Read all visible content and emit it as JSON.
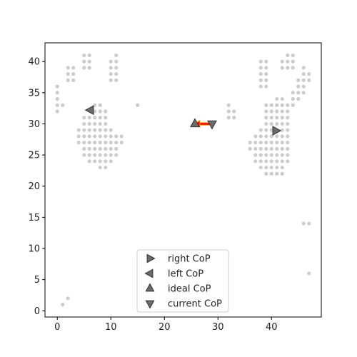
{
  "chart_data": {
    "type": "scatter",
    "title": "",
    "xlabel": "",
    "ylabel": "",
    "xlim": [
      -2.3,
      49.3
    ],
    "ylim": [
      -1,
      43
    ],
    "xticks": [
      "0",
      "10",
      "20",
      "30",
      "40"
    ],
    "yticks": [
      "0",
      "5",
      "10",
      "15",
      "20",
      "25",
      "30",
      "35",
      "40"
    ],
    "grid": false,
    "legend_position": "bottom-center",
    "sensor_color": "#cccccc",
    "marker_color": "#6b6b6b",
    "arrow_color": "#ff0000",
    "arrow_border_color": "#ffaa00",
    "sensor_points": [
      [
        5,
        41
      ],
      [
        6,
        41
      ],
      [
        5,
        40
      ],
      [
        6,
        40
      ],
      [
        5,
        39
      ],
      [
        6,
        39
      ],
      [
        11,
        41
      ],
      [
        10,
        40
      ],
      [
        11,
        40
      ],
      [
        10,
        39
      ],
      [
        11,
        39
      ],
      [
        10,
        38
      ],
      [
        11,
        38
      ],
      [
        10,
        37
      ],
      [
        11,
        37
      ],
      [
        2,
        39
      ],
      [
        3,
        39
      ],
      [
        2,
        38
      ],
      [
        3,
        38
      ],
      [
        2,
        37
      ],
      [
        3,
        37
      ],
      [
        0,
        36
      ],
      [
        0,
        35
      ],
      [
        0,
        34
      ],
      [
        0,
        33
      ],
      [
        1,
        33
      ],
      [
        0,
        32
      ],
      [
        15,
        33
      ],
      [
        7,
        33
      ],
      [
        8,
        33
      ],
      [
        7,
        32
      ],
      [
        8,
        32
      ],
      [
        9,
        32
      ],
      [
        5,
        31
      ],
      [
        6,
        31
      ],
      [
        7,
        31
      ],
      [
        8,
        31
      ],
      [
        9,
        31
      ],
      [
        5,
        30
      ],
      [
        6,
        30
      ],
      [
        7,
        30
      ],
      [
        8,
        30
      ],
      [
        9,
        30
      ],
      [
        4,
        29
      ],
      [
        5,
        29
      ],
      [
        6,
        29
      ],
      [
        7,
        29
      ],
      [
        8,
        29
      ],
      [
        9,
        29
      ],
      [
        10,
        29
      ],
      [
        4,
        28
      ],
      [
        5,
        28
      ],
      [
        6,
        28
      ],
      [
        7,
        28
      ],
      [
        8,
        28
      ],
      [
        9,
        28
      ],
      [
        10,
        28
      ],
      [
        11,
        28
      ],
      [
        12,
        28
      ],
      [
        4,
        27
      ],
      [
        5,
        27
      ],
      [
        6,
        27
      ],
      [
        7,
        27
      ],
      [
        8,
        27
      ],
      [
        9,
        27
      ],
      [
        10,
        27
      ],
      [
        11,
        27
      ],
      [
        12,
        27
      ],
      [
        5,
        26
      ],
      [
        6,
        26
      ],
      [
        7,
        26
      ],
      [
        8,
        26
      ],
      [
        9,
        26
      ],
      [
        10,
        26
      ],
      [
        11,
        26
      ],
      [
        5,
        25
      ],
      [
        6,
        25
      ],
      [
        7,
        25
      ],
      [
        8,
        25
      ],
      [
        9,
        25
      ],
      [
        10,
        25
      ],
      [
        11,
        25
      ],
      [
        6,
        24
      ],
      [
        7,
        24
      ],
      [
        8,
        24
      ],
      [
        9,
        24
      ],
      [
        10,
        24
      ],
      [
        8,
        23
      ],
      [
        9,
        23
      ],
      [
        43,
        41
      ],
      [
        44,
        41
      ],
      [
        42,
        40
      ],
      [
        43,
        40
      ],
      [
        44,
        40
      ],
      [
        42,
        39
      ],
      [
        43,
        39
      ],
      [
        44,
        39
      ],
      [
        38,
        40
      ],
      [
        39,
        40
      ],
      [
        38,
        39
      ],
      [
        39,
        39
      ],
      [
        38,
        38
      ],
      [
        39,
        38
      ],
      [
        38,
        37
      ],
      [
        39,
        37
      ],
      [
        38,
        36
      ],
      [
        39,
        36
      ],
      [
        46,
        39
      ],
      [
        46,
        38
      ],
      [
        47,
        38
      ],
      [
        45,
        37
      ],
      [
        46,
        37
      ],
      [
        47,
        37
      ],
      [
        45,
        36
      ],
      [
        46,
        36
      ],
      [
        44,
        35
      ],
      [
        45,
        35
      ],
      [
        46,
        35
      ],
      [
        41,
        34
      ],
      [
        42,
        34
      ],
      [
        44,
        34
      ],
      [
        45,
        34
      ],
      [
        39,
        33
      ],
      [
        40,
        33
      ],
      [
        41,
        33
      ],
      [
        42,
        33
      ],
      [
        43,
        33
      ],
      [
        44,
        33
      ],
      [
        39,
        32
      ],
      [
        40,
        32
      ],
      [
        41,
        32
      ],
      [
        42,
        32
      ],
      [
        43,
        32
      ],
      [
        32,
        33
      ],
      [
        32,
        32
      ],
      [
        33,
        32
      ],
      [
        32,
        31
      ],
      [
        33,
        31
      ],
      [
        39,
        31
      ],
      [
        40,
        31
      ],
      [
        41,
        31
      ],
      [
        42,
        31
      ],
      [
        43,
        31
      ],
      [
        39,
        30
      ],
      [
        40,
        30
      ],
      [
        41,
        30
      ],
      [
        42,
        30
      ],
      [
        43,
        30
      ],
      [
        38,
        29
      ],
      [
        39,
        29
      ],
      [
        40,
        29
      ],
      [
        42,
        29
      ],
      [
        43,
        29
      ],
      [
        37,
        28
      ],
      [
        38,
        28
      ],
      [
        39,
        28
      ],
      [
        40,
        28
      ],
      [
        41,
        28
      ],
      [
        42,
        28
      ],
      [
        43,
        28
      ],
      [
        36,
        27
      ],
      [
        37,
        27
      ],
      [
        38,
        27
      ],
      [
        39,
        27
      ],
      [
        40,
        27
      ],
      [
        41,
        27
      ],
      [
        42,
        27
      ],
      [
        43,
        27
      ],
      [
        36,
        26
      ],
      [
        37,
        26
      ],
      [
        38,
        26
      ],
      [
        39,
        26
      ],
      [
        40,
        26
      ],
      [
        41,
        26
      ],
      [
        42,
        26
      ],
      [
        43,
        26
      ],
      [
        37,
        25
      ],
      [
        38,
        25
      ],
      [
        39,
        25
      ],
      [
        40,
        25
      ],
      [
        41,
        25
      ],
      [
        42,
        25
      ],
      [
        43,
        25
      ],
      [
        37,
        24
      ],
      [
        38,
        24
      ],
      [
        39,
        24
      ],
      [
        40,
        24
      ],
      [
        41,
        24
      ],
      [
        42,
        24
      ],
      [
        43,
        24
      ],
      [
        38,
        23
      ],
      [
        39,
        23
      ],
      [
        40,
        23
      ],
      [
        41,
        23
      ],
      [
        42,
        23
      ],
      [
        39,
        22
      ],
      [
        40,
        22
      ],
      [
        41,
        22
      ],
      [
        42,
        22
      ],
      [
        46,
        14
      ],
      [
        47,
        14
      ],
      [
        47,
        6
      ],
      [
        1,
        1
      ],
      [
        2,
        2
      ]
    ],
    "markers": [
      {
        "name": "right CoP",
        "shape": "triangle-right",
        "x": 40.8,
        "y": 28.9
      },
      {
        "name": "left CoP",
        "shape": "triangle-left",
        "x": 6.2,
        "y": 32.2
      },
      {
        "name": "ideal CoP",
        "shape": "triangle-up",
        "x": 25.7,
        "y": 30.0
      },
      {
        "name": "current CoP",
        "shape": "triangle-down",
        "x": 28.9,
        "y": 30.0
      }
    ],
    "arrow": {
      "from": [
        28.9,
        30.0
      ],
      "to": [
        25.7,
        30.0
      ]
    },
    "legend": [
      "right CoP",
      "left CoP",
      "ideal CoP",
      "current CoP"
    ]
  }
}
